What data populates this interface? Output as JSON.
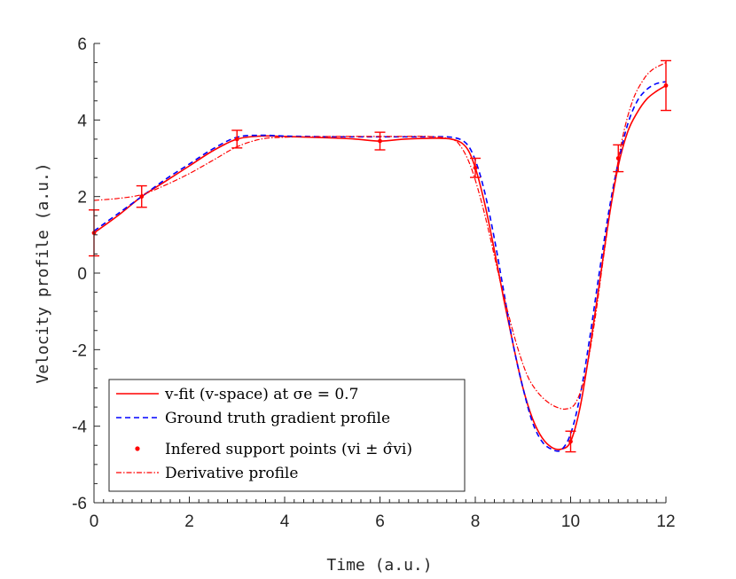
{
  "chart_data": {
    "type": "line",
    "title": "",
    "xlabel": "Time (a.u.)",
    "ylabel": "Velocity profile (a.u.)",
    "xlim": [
      0,
      12
    ],
    "ylim": [
      -6,
      6
    ],
    "xticks": [
      0,
      2,
      4,
      6,
      8,
      10,
      12
    ],
    "xtick_labels": [
      "0",
      "2",
      "4",
      "6",
      "8",
      "10",
      "12"
    ],
    "yticks": [
      -6,
      -4,
      -2,
      0,
      2,
      4,
      6
    ],
    "ytick_labels": [
      "-6",
      "-4",
      "-2",
      "0",
      "2",
      "4",
      "6"
    ],
    "grid": false,
    "legend_position": "bottom-left",
    "series": [
      {
        "name": "v-fit (v-space) at σe = 0.7",
        "style": "solid",
        "color": "#ff0000",
        "x": [
          0,
          0.5,
          1,
          1.5,
          2,
          2.5,
          3,
          3.5,
          4,
          4.5,
          5,
          5.5,
          6,
          6.5,
          7,
          7.5,
          7.8,
          8,
          8.2,
          8.4,
          8.6,
          8.8,
          9,
          9.2,
          9.4,
          9.6,
          9.8,
          10,
          10.2,
          10.4,
          10.6,
          10.8,
          11,
          11.2,
          11.4,
          11.6,
          11.8,
          12
        ],
        "y": [
          1.05,
          1.5,
          2.0,
          2.4,
          2.8,
          3.2,
          3.5,
          3.58,
          3.57,
          3.55,
          3.53,
          3.5,
          3.45,
          3.5,
          3.52,
          3.5,
          3.3,
          2.75,
          1.8,
          0.6,
          -0.7,
          -1.9,
          -3.0,
          -3.8,
          -4.3,
          -4.55,
          -4.6,
          -4.4,
          -3.5,
          -2.0,
          -0.3,
          1.4,
          2.8,
          3.7,
          4.2,
          4.55,
          4.75,
          4.9
        ]
      },
      {
        "name": "Ground truth gradient profile",
        "style": "dashed",
        "color": "#0000ff",
        "x": [
          0,
          0.5,
          1,
          1.5,
          2,
          2.5,
          3,
          3.5,
          4,
          4.5,
          5,
          5.5,
          6,
          6.5,
          7,
          7.5,
          7.8,
          8,
          8.2,
          8.4,
          8.6,
          8.8,
          9,
          9.2,
          9.4,
          9.6,
          9.8,
          10,
          10.2,
          10.4,
          10.6,
          10.8,
          11,
          11.2,
          11.4,
          11.6,
          11.8,
          12
        ],
        "y": [
          1.1,
          1.55,
          2.0,
          2.45,
          2.85,
          3.25,
          3.55,
          3.6,
          3.58,
          3.57,
          3.56,
          3.56,
          3.56,
          3.56,
          3.56,
          3.55,
          3.4,
          2.95,
          2.1,
          0.9,
          -0.5,
          -1.9,
          -3.0,
          -3.9,
          -4.4,
          -4.6,
          -4.62,
          -4.2,
          -3.2,
          -1.7,
          0.0,
          1.6,
          2.9,
          3.9,
          4.5,
          4.8,
          4.95,
          5.0
        ]
      },
      {
        "name": "Derivative profile",
        "style": "dashdot",
        "color": "#ff0000",
        "x": [
          0,
          0.5,
          1,
          1.5,
          2,
          2.5,
          3,
          3.5,
          4,
          4.5,
          5,
          5.5,
          6,
          6.5,
          7,
          7.5,
          7.7,
          7.9,
          8.1,
          8.3,
          8.5,
          8.7,
          8.9,
          9.1,
          9.3,
          9.5,
          9.7,
          9.9,
          10.1,
          10.3,
          10.5,
          10.7,
          10.9,
          11.1,
          11.3,
          11.5,
          11.7,
          12
        ],
        "y": [
          1.9,
          1.95,
          2.05,
          2.3,
          2.6,
          2.95,
          3.3,
          3.5,
          3.55,
          3.56,
          3.57,
          3.57,
          3.57,
          3.57,
          3.57,
          3.5,
          3.3,
          2.8,
          2.0,
          1.0,
          -0.1,
          -1.1,
          -2.0,
          -2.7,
          -3.1,
          -3.35,
          -3.5,
          -3.55,
          -3.4,
          -2.7,
          -1.3,
          0.5,
          2.2,
          3.6,
          4.5,
          5.0,
          5.3,
          5.5
        ]
      }
    ],
    "support_points": {
      "name": "Infered support points (vi ± σ̂vi)",
      "color": "#ff0000",
      "points": [
        {
          "x": 0,
          "y": 1.05,
          "err": 0.6
        },
        {
          "x": 1,
          "y": 2.0,
          "err": 0.28
        },
        {
          "x": 3,
          "y": 3.5,
          "err": 0.23
        },
        {
          "x": 6,
          "y": 3.45,
          "err": 0.23
        },
        {
          "x": 8,
          "y": 2.75,
          "err": 0.25
        },
        {
          "x": 10,
          "y": -4.4,
          "err": 0.27
        },
        {
          "x": 11,
          "y": 3.0,
          "err": 0.35
        },
        {
          "x": 12,
          "y": 4.9,
          "err": 0.65
        }
      ]
    }
  }
}
